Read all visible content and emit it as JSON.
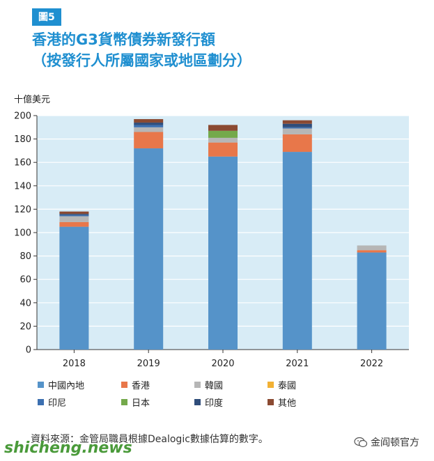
{
  "figure_tag": "圖5",
  "title_line1": "香港的G3貨幣債券新發行額",
  "title_line2": "（按發行人所屬國家或地區劃分）",
  "unit_label": "十億美元",
  "source": "資料來源：金管局職員根據Dealogic數據估算的數字。",
  "watermark": {
    "left_text": "shicheng.news",
    "right_text": "金阎顿官方",
    "icon": "wechat-icon"
  },
  "chart_data": {
    "type": "bar",
    "stacked": true,
    "categories": [
      "2018",
      "2019",
      "2020",
      "2021",
      "2022"
    ],
    "ylim": [
      0,
      200
    ],
    "yticks": [
      0,
      20,
      40,
      60,
      80,
      100,
      120,
      140,
      160,
      180,
      200
    ],
    "grid": true,
    "plot_background": "#d8ecf6",
    "legend_position": "bottom",
    "series": [
      {
        "name": "中國內地",
        "color": "#5593c9",
        "values": [
          105,
          172,
          165,
          169,
          83
        ]
      },
      {
        "name": "香港",
        "color": "#e8774a",
        "values": [
          4,
          14,
          12,
          15,
          2
        ]
      },
      {
        "name": "韓國",
        "color": "#b6b6b6",
        "values": [
          5,
          4,
          4,
          5,
          4
        ]
      },
      {
        "name": "泰國",
        "color": "#f2b134",
        "values": [
          0,
          0,
          0,
          0,
          0
        ]
      },
      {
        "name": "印尼",
        "color": "#3c6fb0",
        "values": [
          1,
          2,
          0,
          1,
          0
        ]
      },
      {
        "name": "日本",
        "color": "#74a94b",
        "values": [
          0,
          0,
          6,
          0,
          0
        ]
      },
      {
        "name": "印度",
        "color": "#2f4d7a",
        "values": [
          1,
          2,
          0,
          3,
          0
        ]
      },
      {
        "name": "其他",
        "color": "#8b4a32",
        "values": [
          2,
          3,
          5,
          3,
          0
        ]
      }
    ]
  }
}
